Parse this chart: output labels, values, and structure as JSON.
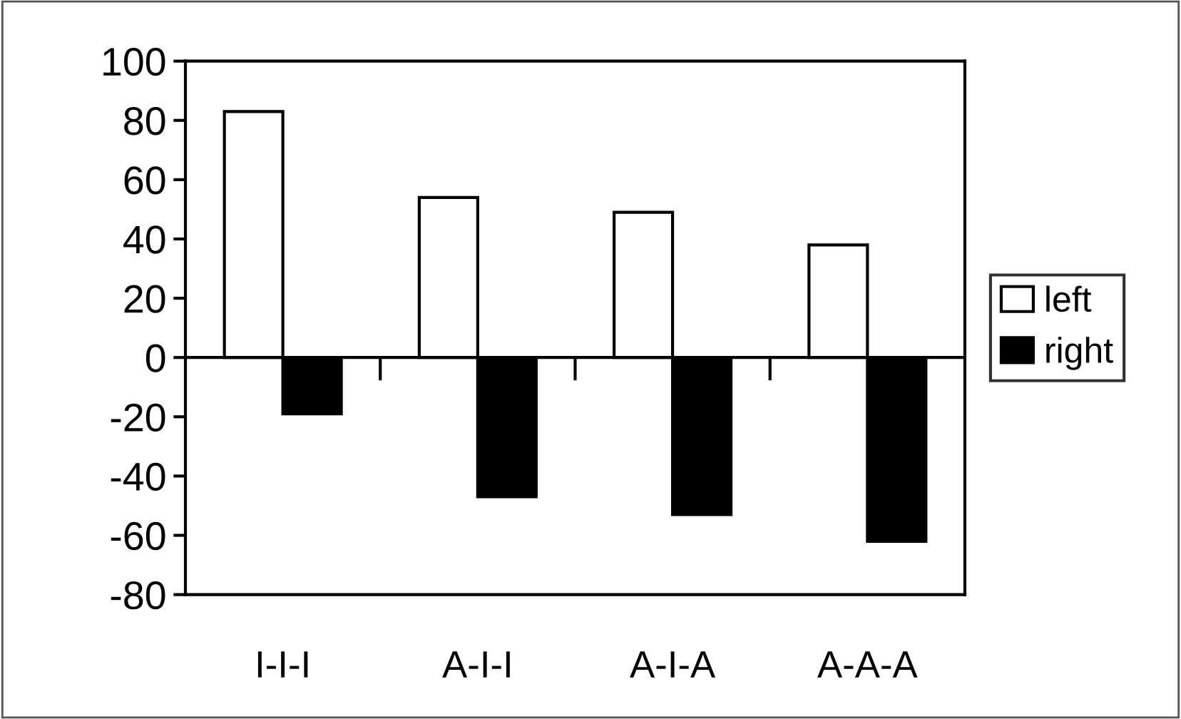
{
  "chart_data": {
    "type": "bar",
    "categories": [
      "I-I-I",
      "A-I-I",
      "A-I-A",
      "A-A-A"
    ],
    "series": [
      {
        "name": "left",
        "color": "#ffffff",
        "values": [
          83,
          54,
          49,
          38
        ]
      },
      {
        "name": "right",
        "color": "#000000",
        "values": [
          -19,
          -47,
          -53,
          -62
        ]
      }
    ],
    "ylim": [
      -80,
      100
    ],
    "yticks": [
      -80,
      -60,
      -40,
      -20,
      0,
      20,
      40,
      60,
      80,
      100
    ],
    "legend": "right"
  }
}
